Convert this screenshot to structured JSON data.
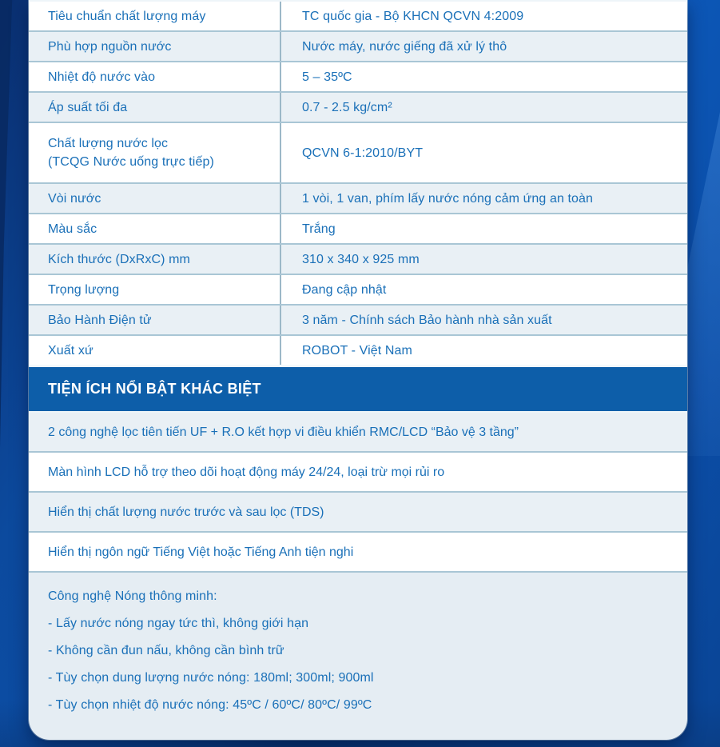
{
  "colors": {
    "section_header_bg": "#0d5ea9",
    "text_blue": "#1a70b8",
    "row_alt_bg": "#e9f0f5",
    "smart_block_bg": "#e5edf3",
    "row_border": "#a9c6d5",
    "background_blue": "#0d5abc"
  },
  "spec_table": {
    "rows": [
      {
        "label": "Tiêu chuẩn chất lượng máy",
        "value": "TC quốc gia - Bộ KHCN QCVN 4:2009",
        "tall": false
      },
      {
        "label": "Phù hợp nguồn nước",
        "value": "Nước máy, nước giếng đã xử lý thô",
        "tall": false
      },
      {
        "label": "Nhiệt độ nước vào",
        "value": "5 – 35ºC",
        "tall": false
      },
      {
        "label": "Áp suất tối đa",
        "value": "0.7 - 2.5 kg/cm²",
        "tall": false
      },
      {
        "label": "Chất lượng nước lọc\n(TCQG Nước uống trực tiếp)",
        "value": "QCVN 6-1:2010/BYT",
        "tall": true
      },
      {
        "label": "Vòi nước",
        "value": "1 vòi, 1 van, phím lấy nước nóng cảm ứng an toàn",
        "tall": false
      },
      {
        "label": "Màu sắc",
        "value": "Trắng",
        "tall": false
      },
      {
        "label": "Kích thước (DxRxC) mm",
        "value": "310 x 340 x 925 mm",
        "tall": false
      },
      {
        "label": "Trọng lượng",
        "value": "Đang cập nhật",
        "tall": false
      },
      {
        "label": "Bảo Hành Điện tử",
        "value": "3 năm - Chính sách Bảo hành nhà sản xuất",
        "tall": false
      },
      {
        "label": "Xuất xứ",
        "value": "ROBOT - Việt Nam",
        "tall": false
      }
    ]
  },
  "features_section": {
    "title": "TIỆN ÍCH NỔI BẬT KHÁC BIỆT",
    "items": [
      "2 công nghệ lọc tiên tiến UF + R.O kết hợp vi điều khiển RMC/LCD “Bảo vệ 3 tầng”",
      "Màn hình LCD hỗ trợ theo dõi hoạt động máy 24/24, loại trừ mọi rủi ro",
      "Hiển thị chất lượng nước trước và sau lọc (TDS)",
      "Hiển thị ngôn ngữ Tiếng Việt hoặc Tiếng Anh tiện nghi"
    ],
    "smart_hot_block": {
      "heading": "Công nghệ Nóng thông minh:",
      "lines": [
        "- Lấy nước nóng ngay tức thì, không giới hạn",
        "- Không cần đun nấu, không cần bình trữ",
        "- Tùy chọn dung lượng nước nóng: 180ml; 300ml; 900ml",
        "- Tùy chọn nhiệt độ nước nóng: 45ºC / 60ºC/ 80ºC/ 99ºC"
      ]
    }
  }
}
